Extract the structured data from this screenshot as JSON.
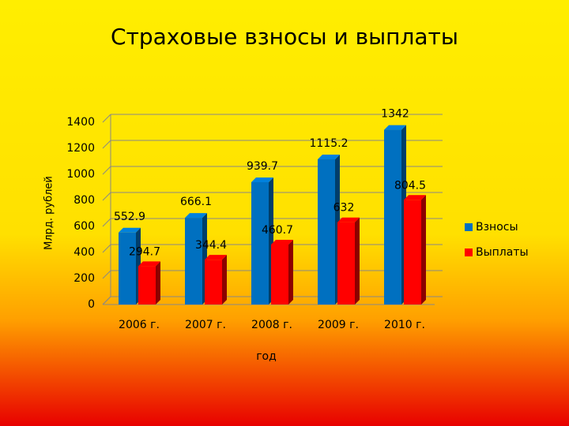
{
  "chart_data": {
    "type": "bar",
    "title": "Страховые взносы и выплаты",
    "y_label": "Млрд. рублей",
    "x_label": "год",
    "categories": [
      "2006 г.",
      "2007 г.",
      "2008 г.",
      "2009 г.",
      "2010 г."
    ],
    "series": [
      {
        "name": "Взносы",
        "color": "#0070c0",
        "values": [
          552.9,
          666.1,
          939.7,
          1115.2,
          1342
        ]
      },
      {
        "name": "Выплаты",
        "color": "#ff0000",
        "values": [
          294.7,
          344.4,
          460.7,
          632,
          804.5
        ]
      }
    ],
    "ylim": [
      0,
      1400
    ],
    "yticks": [
      0,
      200,
      400,
      600,
      800,
      1000,
      1200,
      1400
    ],
    "grid": true,
    "legend": "right"
  }
}
